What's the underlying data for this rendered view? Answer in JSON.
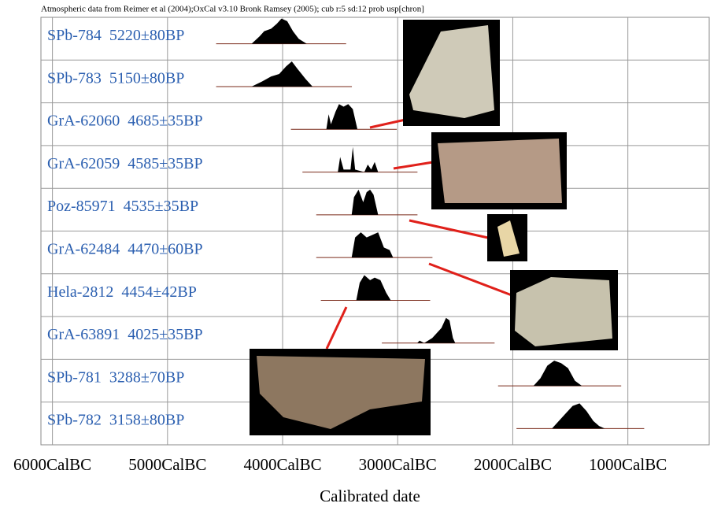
{
  "chart_data": {
    "type": "oxcal",
    "title": "Atmospheric data from Reimer et al (2004);OxCal v3.10 Bronk Ramsey (2005); cub r:5 sd:12 prob usp[chron]",
    "xlabel": "Calibrated date",
    "xlim": [
      -6100,
      -300
    ],
    "xticks": [
      {
        "value": -6000,
        "label": "6000CalBC"
      },
      {
        "value": -5000,
        "label": "5000CalBC"
      },
      {
        "value": -4000,
        "label": "4000CalBC"
      },
      {
        "value": -3000,
        "label": "3000CalBC"
      },
      {
        "value": -2000,
        "label": "2000CalBC"
      },
      {
        "value": -1000,
        "label": "1000CalBC"
      }
    ],
    "grid": true,
    "color": "#000000",
    "label_color": "#2b5fb0",
    "series": [
      {
        "name": "SPb-784  5220±80BP",
        "x": [
          -4270,
          -4200,
          -4160,
          -4100,
          -4050,
          -4010,
          -3960,
          -3910,
          -3860,
          -3790
        ],
        "values": [
          0,
          0.3,
          0.5,
          0.6,
          0.8,
          1,
          0.9,
          0.5,
          0.2,
          0
        ]
      },
      {
        "name": "SPb-783  5150±80BP",
        "x": [
          -4270,
          -4180,
          -4100,
          -4030,
          -3970,
          -3920,
          -3870,
          -3800,
          -3740
        ],
        "values": [
          0,
          0.2,
          0.4,
          0.5,
          0.8,
          1,
          0.7,
          0.3,
          0
        ]
      },
      {
        "name": "GrA-62060  4685±35BP",
        "x": [
          -3620,
          -3600,
          -3580,
          -3540,
          -3510,
          -3470,
          -3430,
          -3390,
          -3350
        ],
        "values": [
          0,
          0.6,
          0.2,
          0.7,
          1,
          0.9,
          1,
          0.8,
          0
        ]
      },
      {
        "name": "GrA-62059  4585±35BP",
        "x": [
          -3520,
          -3500,
          -3470,
          -3410,
          -3390,
          -3370,
          -3290,
          -3260,
          -3230,
          -3200,
          -3170
        ],
        "values": [
          0,
          0.6,
          0.1,
          0.1,
          1,
          0.1,
          0,
          0.3,
          0.1,
          0.4,
          0
        ]
      },
      {
        "name": "Poz-85971  4535±35BP",
        "x": [
          -3400,
          -3380,
          -3340,
          -3300,
          -3270,
          -3240,
          -3210,
          -3170
        ],
        "values": [
          0,
          0.7,
          1,
          0.5,
          0.9,
          1,
          0.8,
          0
        ]
      },
      {
        "name": "GrA-62484  4470±60BP",
        "x": [
          -3400,
          -3370,
          -3320,
          -3270,
          -3220,
          -3170,
          -3120,
          -3070,
          -3040
        ],
        "values": [
          0,
          0.8,
          1,
          0.8,
          0.9,
          1,
          0.4,
          0.3,
          0
        ]
      },
      {
        "name": "Hela-2812  4454±42BP",
        "x": [
          -3360,
          -3330,
          -3290,
          -3240,
          -3200,
          -3150,
          -3100,
          -3060
        ],
        "values": [
          0,
          0.7,
          1,
          0.8,
          0.9,
          0.8,
          0.3,
          0
        ]
      },
      {
        "name": "GrA-63891  4025±35BP",
        "x": [
          -2830,
          -2810,
          -2770,
          -2700,
          -2660,
          -2620,
          -2580,
          -2550,
          -2520,
          -2500
        ],
        "values": [
          0,
          0.1,
          0,
          0.2,
          0.4,
          0.6,
          1,
          0.9,
          0.2,
          0
        ]
      },
      {
        "name": "SPb-781  3288±70BP",
        "x": [
          -1820,
          -1760,
          -1700,
          -1640,
          -1580,
          -1520,
          -1460,
          -1400
        ],
        "values": [
          0,
          0.3,
          0.8,
          1,
          0.9,
          0.7,
          0.2,
          0
        ]
      },
      {
        "name": "SPb-782  3158±80BP",
        "x": [
          -1660,
          -1600,
          -1540,
          -1480,
          -1420,
          -1360,
          -1300,
          -1250,
          -1200
        ],
        "values": [
          0,
          0.3,
          0.6,
          0.9,
          1,
          0.7,
          0.3,
          0.1,
          0
        ]
      }
    ]
  }
}
